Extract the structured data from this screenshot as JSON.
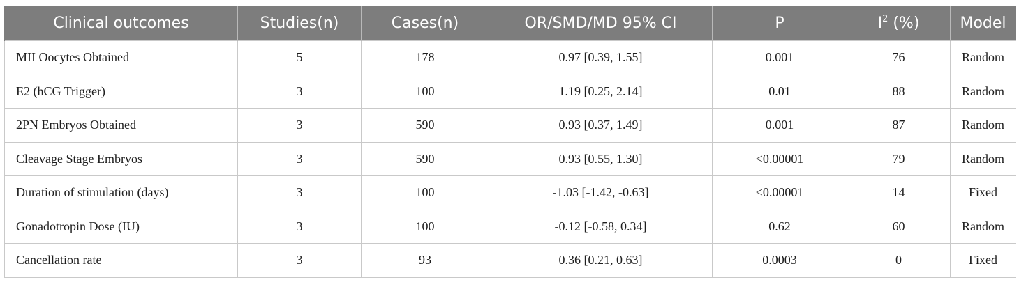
{
  "table": {
    "headers": {
      "outcome": "Clinical outcomes",
      "studies": "Studies(n)",
      "cases": "Cases(n)",
      "effect": "OR/SMD/MD 95% CI",
      "p": "P",
      "i2_base": "I",
      "i2_sup": "2",
      "i2_unit": " (%)",
      "model": "Model"
    },
    "rows": [
      {
        "outcome": "MII Oocytes Obtained",
        "studies": "5",
        "cases": "178",
        "effect": "0.97 [0.39, 1.55]",
        "p": "0.001",
        "i2": "76",
        "model": "Random"
      },
      {
        "outcome": "E2 (hCG Trigger)",
        "studies": "3",
        "cases": "100",
        "effect": "1.19 [0.25, 2.14]",
        "p": "0.01",
        "i2": "88",
        "model": "Random"
      },
      {
        "outcome": "2PN Embryos Obtained",
        "studies": "3",
        "cases": "590",
        "effect": "0.93 [0.37, 1.49]",
        "p": "0.001",
        "i2": "87",
        "model": "Random"
      },
      {
        "outcome": "Cleavage Stage Embryos",
        "studies": "3",
        "cases": "590",
        "effect": "0.93 [0.55, 1.30]",
        "p": "<0.00001",
        "i2": "79",
        "model": "Random"
      },
      {
        "outcome": "Duration of stimulation (days)",
        "studies": "3",
        "cases": "100",
        "effect": "-1.03 [-1.42, -0.63]",
        "p": "<0.00001",
        "i2": "14",
        "model": "Fixed"
      },
      {
        "outcome": "Gonadotropin Dose (IU)",
        "studies": "3",
        "cases": "100",
        "effect": "-0.12 [-0.58, 0.34]",
        "p": "0.62",
        "i2": "60",
        "model": "Random"
      },
      {
        "outcome": "Cancellation rate",
        "studies": "3",
        "cases": "93",
        "effect": "0.36 [0.21, 0.63]",
        "p": "0.0003",
        "i2": "0",
        "model": "Fixed"
      }
    ],
    "colors": {
      "header_bg": "#7d7d7d",
      "header_text": "#ffffff",
      "grid": "#c9c9c9"
    }
  }
}
